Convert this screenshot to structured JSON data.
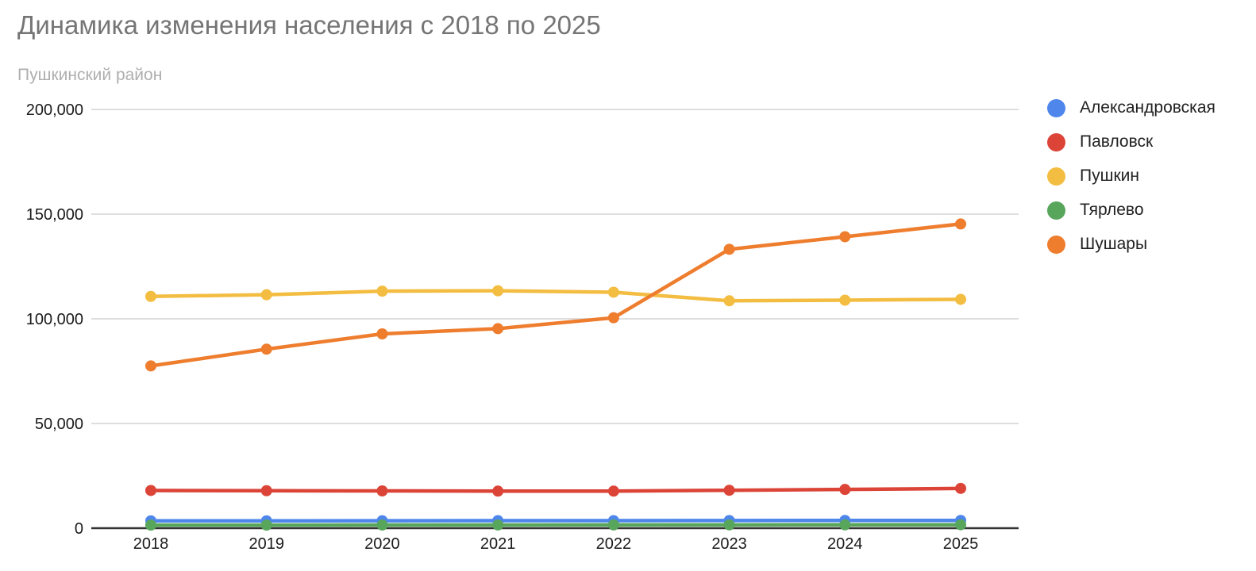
{
  "title": "Динамика изменения населения с 2018 по 2025",
  "subtitle": "Пушкинский район",
  "colors": {
    "background": "#ffffff",
    "title_text": "#757575",
    "subtitle_text": "#aeaeae",
    "axis_text": "#1a1a1a",
    "gridline": "#d9d9d9",
    "axis_line": "#333333",
    "legend_text": "#212121"
  },
  "chart_data": {
    "type": "line",
    "title": "Динамика изменения населения с 2018 по 2025",
    "subtitle": "Пушкинский район",
    "xlabel": "",
    "ylabel": "",
    "x": [
      "2018",
      "2019",
      "2020",
      "2021",
      "2022",
      "2023",
      "2024",
      "2025"
    ],
    "series": [
      {
        "name": "Александровская",
        "key": "aleksandrovskaya",
        "color": "#4e86ec",
        "values": [
          3500,
          3500,
          3550,
          3600,
          3600,
          3650,
          3700,
          3700
        ]
      },
      {
        "name": "Павловск",
        "key": "pavlovsk",
        "color": "#db4437",
        "values": [
          18000,
          17900,
          17800,
          17700,
          17700,
          18100,
          18500,
          19000
        ]
      },
      {
        "name": "Пушкин",
        "key": "pushkin",
        "color": "#f3bd41",
        "values": [
          110700,
          111500,
          113200,
          113400,
          112700,
          108600,
          108900,
          109300
        ]
      },
      {
        "name": "Тярлево",
        "key": "tyarlevo",
        "color": "#58a55c",
        "values": [
          1450,
          1470,
          1500,
          1520,
          1550,
          1580,
          1600,
          1620
        ]
      },
      {
        "name": "Шушары",
        "key": "shushary",
        "color": "#ee7d2e",
        "values": [
          77500,
          85500,
          92800,
          95300,
          100500,
          133200,
          139200,
          145300
        ]
      }
    ],
    "ylim": [
      0,
      200000
    ],
    "y_ticks": [
      0,
      50000,
      100000,
      150000,
      200000
    ],
    "y_tick_labels": [
      "0",
      "50,000",
      "100,000",
      "150,000",
      "200,000"
    ],
    "grid": true,
    "legend_position": "right"
  }
}
